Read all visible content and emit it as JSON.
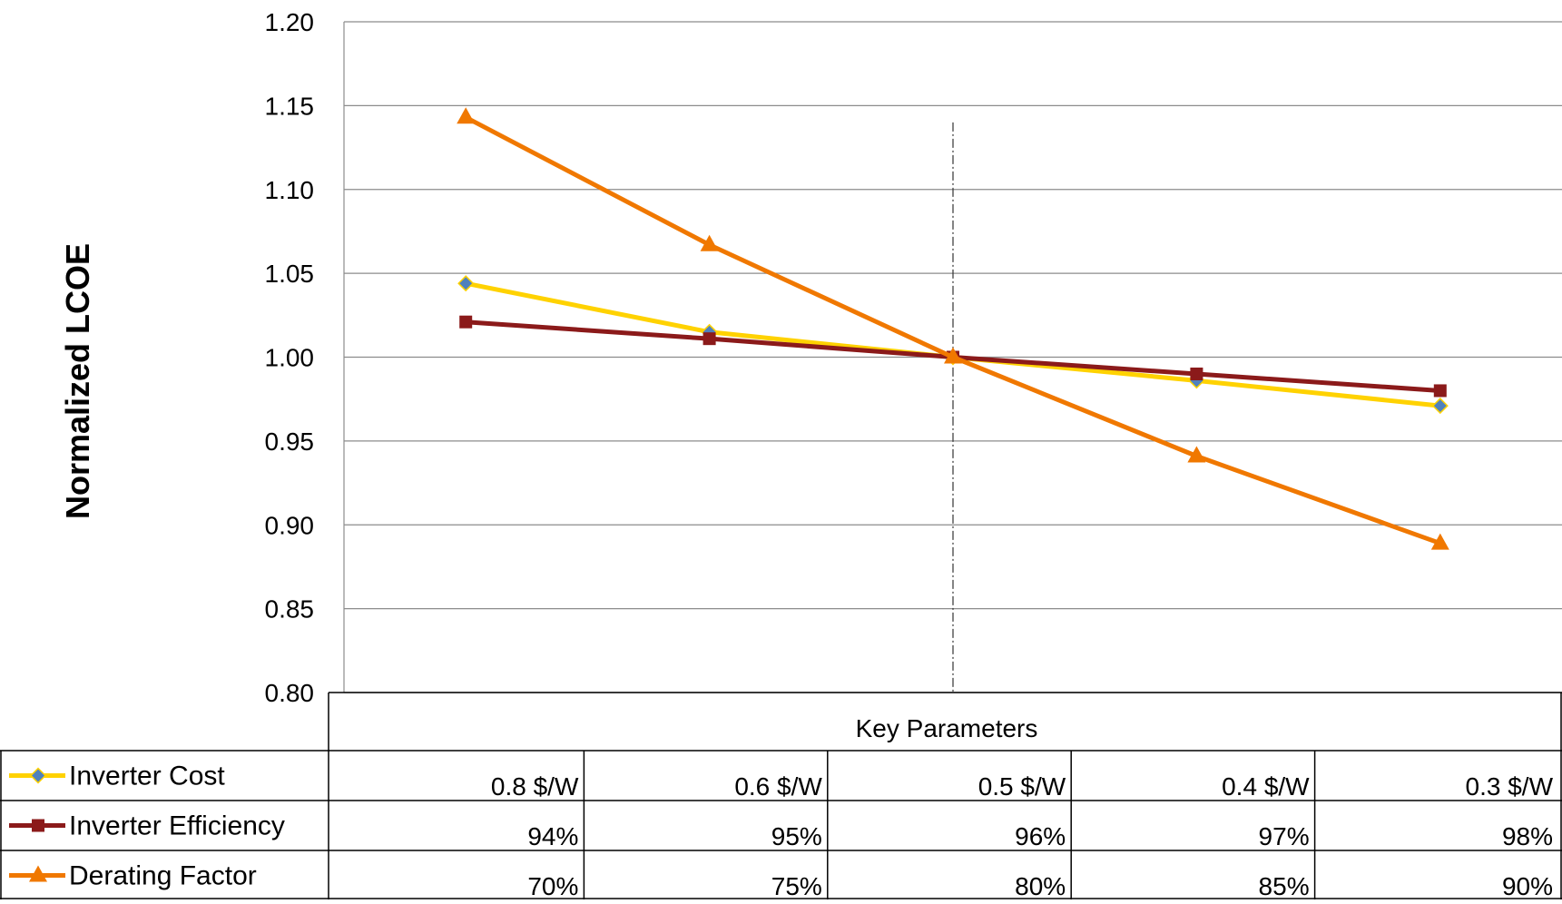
{
  "chart_data": {
    "type": "line",
    "ylabel": "Normalized LCOE",
    "ylim": [
      0.8,
      1.2
    ],
    "y_ticks": [
      "0.80",
      "0.85",
      "0.90",
      "0.95",
      "1.00",
      "1.05",
      "1.10",
      "1.15",
      "1.20"
    ],
    "grid": true,
    "table_header": "Key Parameters",
    "series": [
      {
        "name": "Inverter Cost",
        "color": "#FFD200",
        "marker": "diamond",
        "marker_color": "#4F81BD",
        "x_labels": [
          "0.8 $/W",
          "0.6 $/W",
          "0.5 $/W",
          "0.4 $/W",
          "0.3 $/W"
        ],
        "values": [
          1.044,
          1.015,
          1.0,
          0.986,
          0.971
        ]
      },
      {
        "name": "Inverter Efficiency",
        "color": "#8B1A1A",
        "marker": "square",
        "marker_color": "#8B1A1A",
        "x_labels": [
          "94%",
          "95%",
          "96%",
          "97%",
          "98%"
        ],
        "values": [
          1.021,
          1.011,
          1.0,
          0.99,
          0.98
        ]
      },
      {
        "name": "Derating Factor",
        "color": "#F07800",
        "marker": "triangle",
        "marker_color": "#F07800",
        "x_labels": [
          "70%",
          "75%",
          "80%",
          "85%",
          "90%"
        ],
        "values": [
          1.143,
          1.067,
          1.0,
          0.941,
          0.889
        ]
      }
    ],
    "reference_line_index": 2
  }
}
